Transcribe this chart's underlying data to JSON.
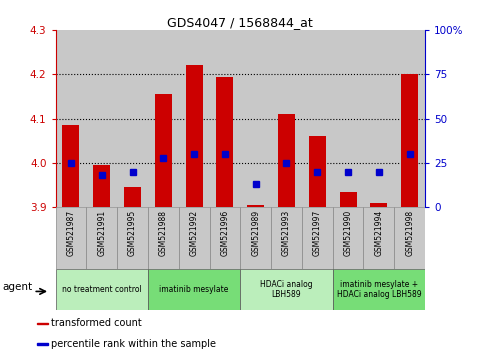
{
  "title": "GDS4047 / 1568844_at",
  "samples": [
    "GSM521987",
    "GSM521991",
    "GSM521995",
    "GSM521988",
    "GSM521992",
    "GSM521996",
    "GSM521989",
    "GSM521993",
    "GSM521997",
    "GSM521990",
    "GSM521994",
    "GSM521998"
  ],
  "bar_values": [
    4.085,
    3.995,
    3.945,
    4.155,
    4.22,
    4.195,
    3.905,
    4.11,
    4.06,
    3.935,
    3.91,
    4.2
  ],
  "bar_baseline": 3.9,
  "percentile_values": [
    25,
    18,
    20,
    28,
    30,
    30,
    13,
    25,
    20,
    20,
    20,
    30
  ],
  "bar_color": "#cc0000",
  "percentile_color": "#0000cc",
  "ylim_left": [
    3.9,
    4.3
  ],
  "ylim_right": [
    0,
    100
  ],
  "yticks_left": [
    3.9,
    4.0,
    4.1,
    4.2,
    4.3
  ],
  "yticks_right": [
    0,
    25,
    50,
    75,
    100
  ],
  "ytick_labels_right": [
    "0",
    "25",
    "50",
    "75",
    "100%"
  ],
  "groups": [
    {
      "label": "no treatment control",
      "start": 0,
      "end": 3,
      "color": "#bbeebb"
    },
    {
      "label": "imatinib mesylate",
      "start": 3,
      "end": 6,
      "color": "#77dd77"
    },
    {
      "label": "HDACi analog\nLBH589",
      "start": 6,
      "end": 9,
      "color": "#bbeebb"
    },
    {
      "label": "imatinib mesylate +\nHDACi analog LBH589",
      "start": 9,
      "end": 12,
      "color": "#77dd77"
    }
  ],
  "legend_items": [
    {
      "label": "transformed count",
      "color": "#cc0000"
    },
    {
      "label": "percentile rank within the sample",
      "color": "#0000cc"
    }
  ],
  "agent_label": "agent",
  "bg_color": "#c8c8c8",
  "left_axis_color": "#cc0000",
  "right_axis_color": "#0000cc",
  "percentile_marker_size": 5,
  "bar_width": 0.55
}
